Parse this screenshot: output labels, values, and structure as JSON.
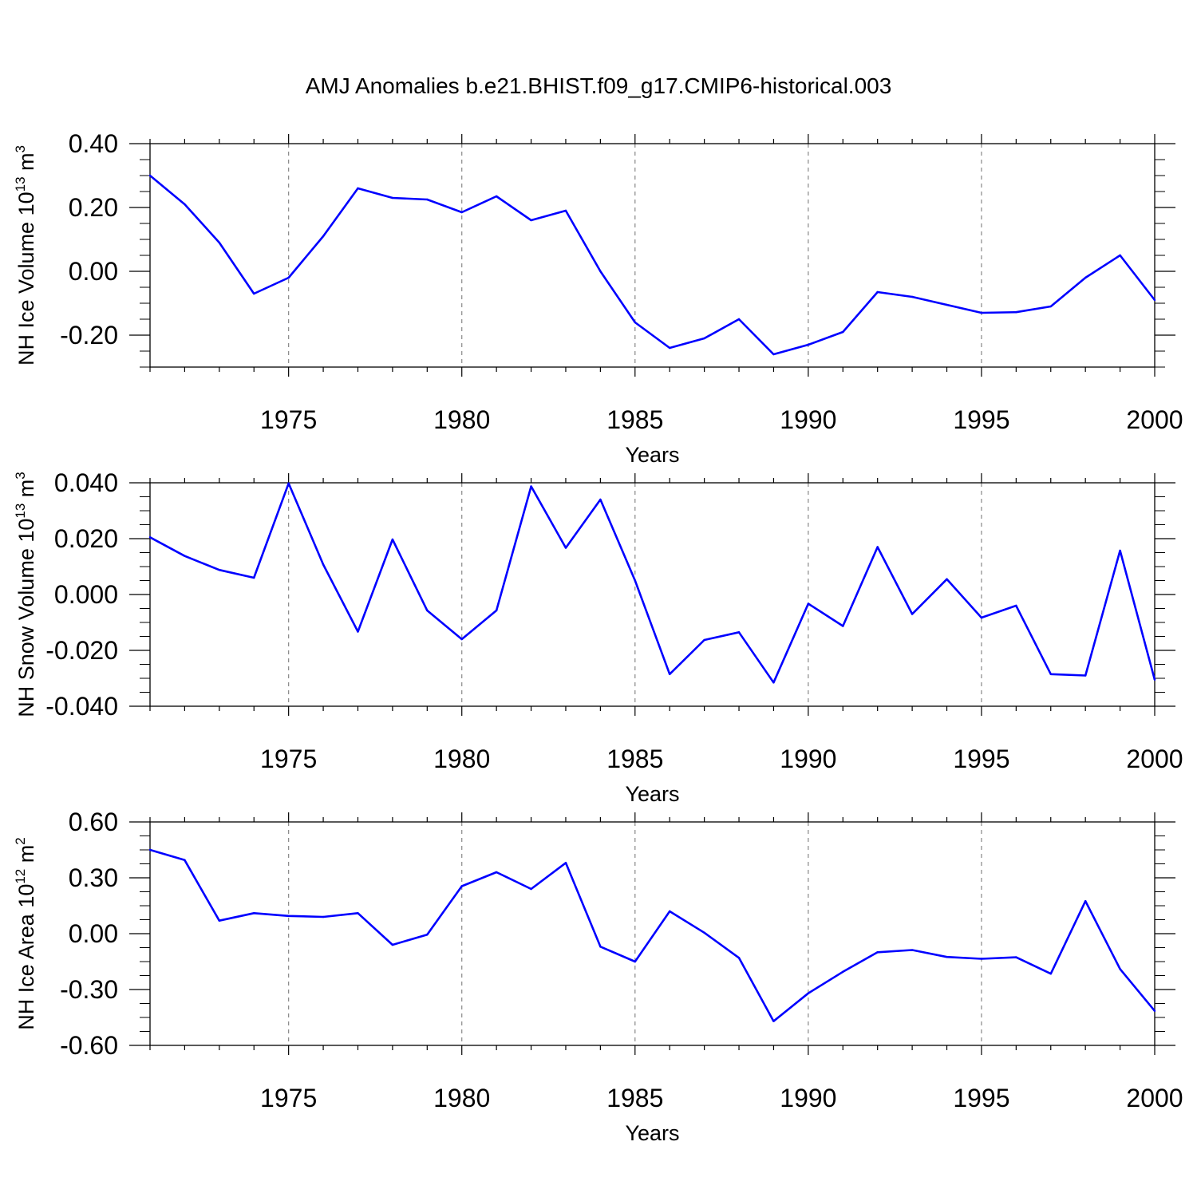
{
  "title": "AMJ Anomalies b.e21.BHIST.f09_g17.CMIP6-historical.003",
  "line_color": "#0000ff",
  "chart_data": [
    {
      "type": "line",
      "xlabel": "Years",
      "ylabel_main": "NH Ice Volume 10",
      "ylabel_exp": "13",
      "ylabel_unit": " m",
      "ylabel_unit_exp": "3",
      "x": [
        1971,
        1972,
        1973,
        1974,
        1975,
        1976,
        1977,
        1978,
        1979,
        1980,
        1981,
        1982,
        1983,
        1984,
        1985,
        1986,
        1987,
        1988,
        1989,
        1990,
        1991,
        1992,
        1993,
        1994,
        1995,
        1996,
        1997,
        1998,
        1999,
        2000
      ],
      "values": [
        0.3,
        0.21,
        0.09,
        -0.07,
        -0.02,
        0.11,
        0.26,
        0.23,
        0.225,
        0.185,
        0.235,
        0.16,
        0.19,
        0.0,
        -0.16,
        -0.24,
        -0.21,
        -0.15,
        -0.26,
        -0.23,
        -0.19,
        -0.065,
        -0.08,
        -0.105,
        -0.13,
        -0.128,
        -0.11,
        -0.02,
        0.05,
        -0.09
      ],
      "xlim": [
        1971,
        2000
      ],
      "ylim": [
        -0.3,
        0.4
      ],
      "yticks": [
        -0.2,
        0.0,
        0.2,
        0.4
      ],
      "yticklabels": [
        "-0.20",
        "0.00",
        "0.20",
        "0.40"
      ],
      "xticks": [
        1975,
        1980,
        1985,
        1990,
        1995,
        2000
      ],
      "xticklabels": [
        "1975",
        "1980",
        "1985",
        "1990",
        "1995",
        "2000"
      ],
      "grid": "vertical dashed at labeled years"
    },
    {
      "type": "line",
      "xlabel": "Years",
      "ylabel_main": "NH Snow Volume 10",
      "ylabel_exp": "13",
      "ylabel_unit": " m",
      "ylabel_unit_exp": "3",
      "x": [
        1971,
        1972,
        1973,
        1974,
        1975,
        1976,
        1977,
        1978,
        1979,
        1980,
        1981,
        1982,
        1983,
        1984,
        1985,
        1986,
        1987,
        1988,
        1989,
        1990,
        1991,
        1992,
        1993,
        1994,
        1995,
        1996,
        1997,
        1998,
        1999,
        2000
      ],
      "values": [
        0.0205,
        0.0138,
        0.0088,
        0.006,
        0.0398,
        0.0107,
        -0.0133,
        0.0197,
        -0.0057,
        -0.016,
        -0.0057,
        0.0387,
        0.0167,
        0.034,
        0.005,
        -0.0285,
        -0.0163,
        -0.0135,
        -0.0315,
        -0.0033,
        -0.0113,
        0.017,
        -0.007,
        0.0055,
        -0.0083,
        -0.004,
        -0.0285,
        -0.029,
        0.0157,
        -0.0305
      ],
      "xlim": [
        1971,
        2000
      ],
      "ylim": [
        -0.04,
        0.04
      ],
      "yticks": [
        -0.04,
        -0.02,
        0.0,
        0.02,
        0.04
      ],
      "yticklabels": [
        "-0.040",
        "-0.020",
        "0.000",
        "0.020",
        "0.040"
      ],
      "xticks": [
        1975,
        1980,
        1985,
        1990,
        1995,
        2000
      ],
      "xticklabels": [
        "1975",
        "1980",
        "1985",
        "1990",
        "1995",
        "2000"
      ],
      "grid": "vertical dashed at labeled years"
    },
    {
      "type": "line",
      "xlabel": "Years",
      "ylabel_main": "NH Ice Area 10",
      "ylabel_exp": "12",
      "ylabel_unit": " m",
      "ylabel_unit_exp": "2",
      "x": [
        1971,
        1972,
        1973,
        1974,
        1975,
        1976,
        1977,
        1978,
        1979,
        1980,
        1981,
        1982,
        1983,
        1984,
        1985,
        1986,
        1987,
        1988,
        1989,
        1990,
        1991,
        1992,
        1993,
        1994,
        1995,
        1996,
        1997,
        1998,
        1999,
        2000
      ],
      "values": [
        0.45,
        0.395,
        0.07,
        0.11,
        0.095,
        0.09,
        0.11,
        -0.06,
        -0.005,
        0.255,
        0.33,
        0.24,
        0.38,
        -0.07,
        -0.15,
        0.12,
        0.005,
        -0.13,
        -0.47,
        -0.32,
        -0.205,
        -0.1,
        -0.088,
        -0.125,
        -0.135,
        -0.127,
        -0.215,
        0.175,
        -0.19,
        -0.415
      ],
      "xlim": [
        1971,
        2000
      ],
      "ylim": [
        -0.6,
        0.6
      ],
      "yticks": [
        -0.6,
        -0.3,
        0.0,
        0.3,
        0.6
      ],
      "yticklabels": [
        "-0.60",
        "-0.30",
        "0.00",
        "0.30",
        "0.60"
      ],
      "xticks": [
        1975,
        1980,
        1985,
        1990,
        1995,
        2000
      ],
      "xticklabels": [
        "1975",
        "1980",
        "1985",
        "1990",
        "1995",
        "2000"
      ],
      "grid": "vertical dashed at labeled years"
    }
  ]
}
